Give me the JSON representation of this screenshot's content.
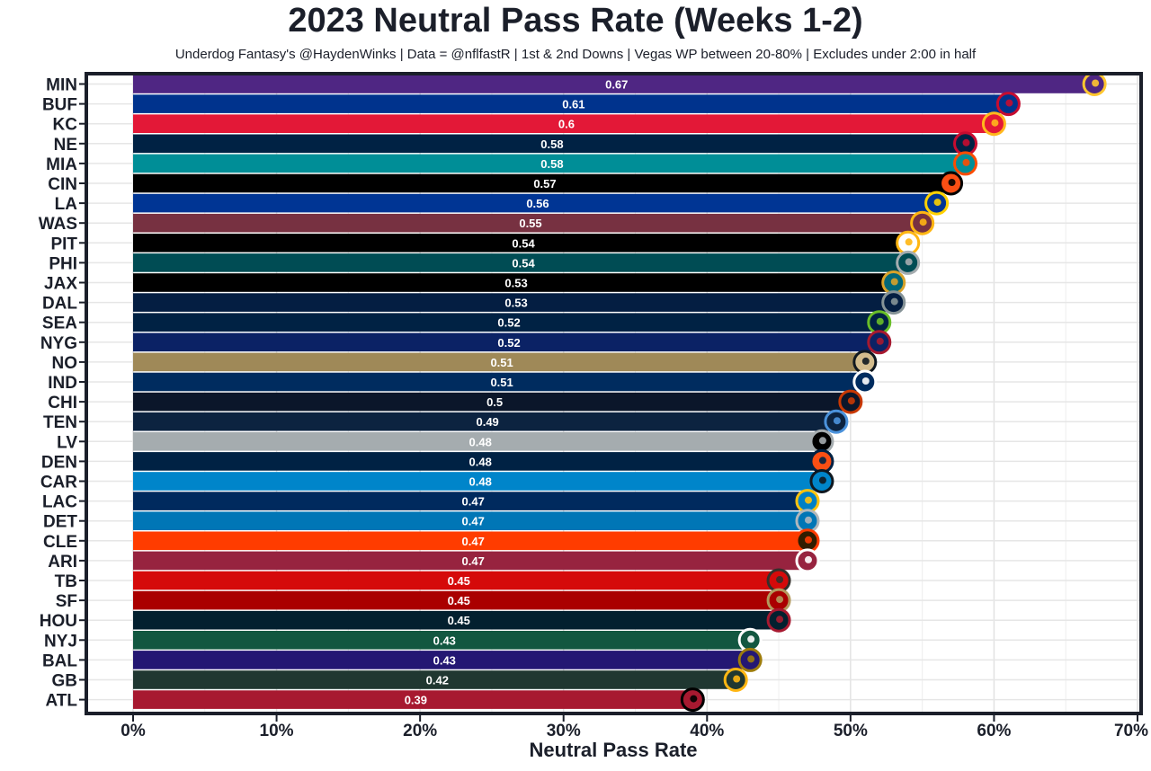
{
  "chart_data": {
    "type": "bar",
    "orientation": "horizontal",
    "title": "2023 Neutral Pass Rate (Weeks 1-2)",
    "subtitle": "Underdog Fantasy's @HaydenWinks | Data = @nflfastR | 1st & 2nd Downs | Vegas WP between 20-80% | Excludes under 2:00 in half",
    "xlabel": "Neutral Pass Rate",
    "ylabel": "",
    "xlim": [
      0,
      0.7
    ],
    "xticks": [
      0,
      0.1,
      0.2,
      0.3,
      0.4,
      0.5,
      0.6,
      0.7
    ],
    "xtick_labels": [
      "0%",
      "10%",
      "20%",
      "30%",
      "40%",
      "50%",
      "60%",
      "70%"
    ],
    "grid": true,
    "legend": "none",
    "categories": [
      "MIN",
      "BUF",
      "KC",
      "NE",
      "MIA",
      "CIN",
      "LA",
      "WAS",
      "PIT",
      "PHI",
      "JAX",
      "DAL",
      "SEA",
      "NYG",
      "NO",
      "IND",
      "CHI",
      "TEN",
      "LV",
      "DEN",
      "CAR",
      "LAC",
      "DET",
      "CLE",
      "ARI",
      "TB",
      "SF",
      "HOU",
      "NYJ",
      "BAL",
      "GB",
      "ATL"
    ],
    "values": [
      0.67,
      0.61,
      0.6,
      0.58,
      0.58,
      0.57,
      0.56,
      0.55,
      0.54,
      0.54,
      0.53,
      0.53,
      0.52,
      0.52,
      0.51,
      0.51,
      0.5,
      0.49,
      0.48,
      0.48,
      0.48,
      0.47,
      0.47,
      0.47,
      0.47,
      0.45,
      0.45,
      0.45,
      0.43,
      0.43,
      0.42,
      0.39
    ],
    "data_labels": [
      "0.67",
      "0.61",
      "0.6",
      "0.58",
      "0.58",
      "0.57",
      "0.56",
      "0.55",
      "0.54",
      "0.54",
      "0.53",
      "0.53",
      "0.52",
      "0.52",
      "0.51",
      "0.51",
      "0.5",
      "0.49",
      "0.48",
      "0.48",
      "0.48",
      "0.47",
      "0.47",
      "0.47",
      "0.47",
      "0.45",
      "0.45",
      "0.45",
      "0.43",
      "0.43",
      "0.42",
      "0.39"
    ],
    "bar_colors": [
      "#4F2683",
      "#00338D",
      "#E31837",
      "#002244",
      "#008E97",
      "#000000",
      "#003594",
      "#773141",
      "#000000",
      "#004C54",
      "#000000",
      "#041E42",
      "#002244",
      "#0B2265",
      "#9F8958",
      "#002C5F",
      "#0B162A",
      "#0C2340",
      "#A5ACAF",
      "#002244",
      "#0085CA",
      "#002A5E",
      "#0076B6",
      "#FF3C00",
      "#97233F",
      "#D50A0A",
      "#AA0000",
      "#03202F",
      "#125740",
      "#241773",
      "#203731",
      "#A71930"
    ],
    "logo_colors": [
      [
        "#4F2683",
        "#FFC62F"
      ],
      [
        "#00338D",
        "#C60C30"
      ],
      [
        "#E31837",
        "#FFB81C"
      ],
      [
        "#002244",
        "#C60C30"
      ],
      [
        "#008E97",
        "#FC4C02"
      ],
      [
        "#FB4F14",
        "#000000"
      ],
      [
        "#003594",
        "#FFD100"
      ],
      [
        "#773141",
        "#FFB612"
      ],
      [
        "#FFFFFF",
        "#FFB612"
      ],
      [
        "#004C54",
        "#A5ACAF"
      ],
      [
        "#006778",
        "#D7A22A"
      ],
      [
        "#041E42",
        "#869397"
      ],
      [
        "#002244",
        "#69BE28"
      ],
      [
        "#0B2265",
        "#A71930"
      ],
      [
        "#D3BC8D",
        "#101820"
      ],
      [
        "#002C5F",
        "#FFFFFF"
      ],
      [
        "#0B162A",
        "#C83803"
      ],
      [
        "#0C2340",
        "#4B92DB"
      ],
      [
        "#000000",
        "#A5ACAF"
      ],
      [
        "#FB4F14",
        "#002244"
      ],
      [
        "#0085CA",
        "#101820"
      ],
      [
        "#0080C6",
        "#FFC20E"
      ],
      [
        "#0076B6",
        "#B0B7BC"
      ],
      [
        "#311D00",
        "#FF3C00"
      ],
      [
        "#97233F",
        "#FFFFFF"
      ],
      [
        "#D50A0A",
        "#34302B"
      ],
      [
        "#AA0000",
        "#B3995D"
      ],
      [
        "#03202F",
        "#A71930"
      ],
      [
        "#125740",
        "#FFFFFF"
      ],
      [
        "#241773",
        "#9E7C0C"
      ],
      [
        "#203731",
        "#FFB612"
      ],
      [
        "#A71930",
        "#000000"
      ]
    ]
  }
}
